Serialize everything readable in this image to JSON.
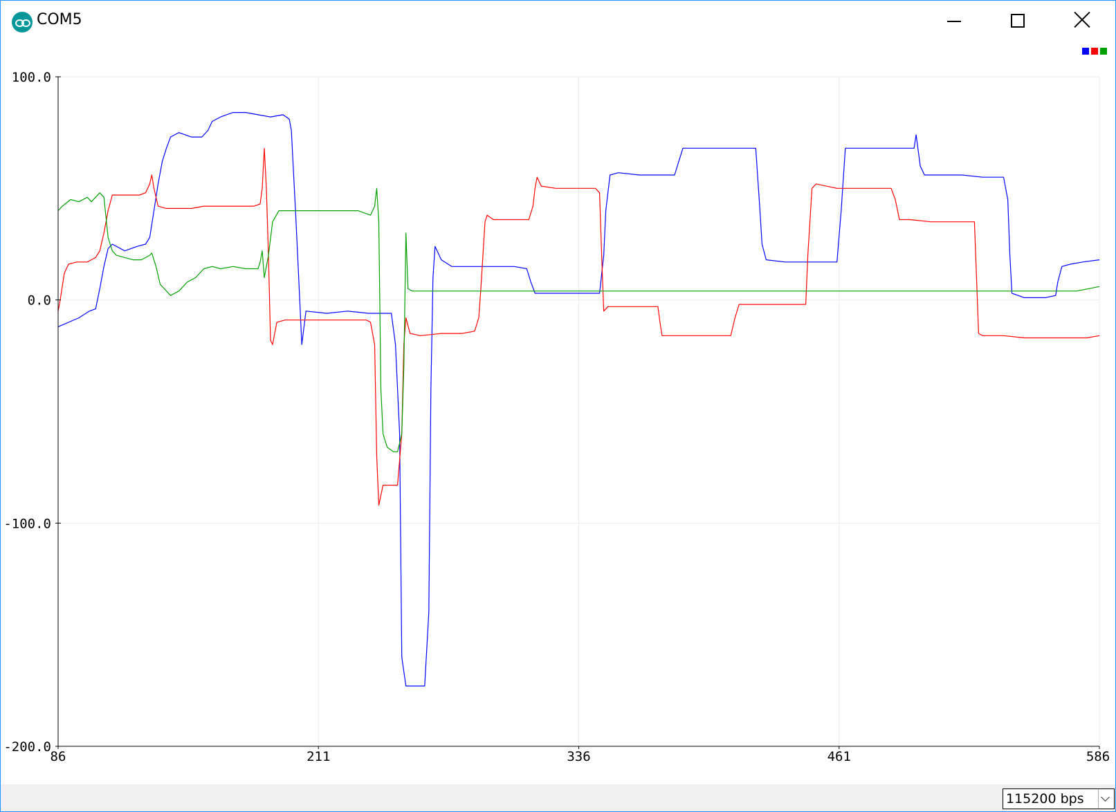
{
  "window": {
    "title": "COM5",
    "app_icon": "arduino-logo-icon",
    "controls": [
      "minimize-icon",
      "maximize-icon",
      "close-icon"
    ]
  },
  "baud": {
    "selected": "115200 bps"
  },
  "colors": {
    "series_1": "#0000ff",
    "series_2": "#ff0000",
    "series_3": "#00a000",
    "grid": "#ececec",
    "axis": "#000000",
    "bottom_bar": "#f0f0f0"
  },
  "chart_data": {
    "type": "line",
    "title": "",
    "xlabel": "",
    "ylabel": "",
    "xlim": [
      86,
      586
    ],
    "ylim": [
      -200,
      100
    ],
    "x_ticks": [
      "86",
      "211",
      "336",
      "461",
      "586"
    ],
    "y_ticks": [
      "100.0",
      "0.0",
      "-100.0",
      "-200.0"
    ],
    "grid": true,
    "legend_placement": "top-right",
    "series": [
      {
        "color": "#0000ff",
        "points": [
          [
            86,
            -12
          ],
          [
            96,
            -8
          ],
          [
            101,
            -5
          ],
          [
            104,
            -4
          ],
          [
            106,
            5
          ],
          [
            108,
            15
          ],
          [
            110,
            23
          ],
          [
            112,
            25
          ],
          [
            118,
            22
          ],
          [
            124,
            24
          ],
          [
            128,
            25
          ],
          [
            130,
            28
          ],
          [
            132,
            40
          ],
          [
            134,
            52
          ],
          [
            136,
            62
          ],
          [
            138,
            68
          ],
          [
            140,
            73
          ],
          [
            144,
            75
          ],
          [
            150,
            73
          ],
          [
            155,
            73
          ],
          [
            158,
            76
          ],
          [
            160,
            80
          ],
          [
            164,
            82
          ],
          [
            170,
            84
          ],
          [
            176,
            84
          ],
          [
            182,
            83
          ],
          [
            188,
            82
          ],
          [
            194,
            83
          ],
          [
            197,
            81
          ],
          [
            198,
            76
          ],
          [
            200,
            40
          ],
          [
            201,
            20
          ],
          [
            202,
            0
          ],
          [
            203,
            -20
          ],
          [
            205,
            -5
          ],
          [
            215,
            -6
          ],
          [
            225,
            -5
          ],
          [
            235,
            -6
          ],
          [
            246,
            -6
          ],
          [
            248,
            -20
          ],
          [
            250,
            -60
          ],
          [
            251,
            -160
          ],
          [
            253,
            -173
          ],
          [
            258,
            -173
          ],
          [
            262,
            -173
          ],
          [
            264,
            -140
          ],
          [
            265,
            -40
          ],
          [
            266,
            10
          ],
          [
            267,
            24
          ],
          [
            270,
            18
          ],
          [
            275,
            15
          ],
          [
            285,
            15
          ],
          [
            295,
            15
          ],
          [
            305,
            15
          ],
          [
            311,
            14
          ],
          [
            313,
            8
          ],
          [
            315,
            3
          ],
          [
            320,
            3
          ],
          [
            330,
            3
          ],
          [
            340,
            3
          ],
          [
            346,
            3
          ],
          [
            348,
            20
          ],
          [
            349,
            40
          ],
          [
            351,
            56
          ],
          [
            355,
            57
          ],
          [
            365,
            56
          ],
          [
            375,
            56
          ],
          [
            382,
            56
          ],
          [
            384,
            62
          ],
          [
            386,
            68
          ],
          [
            390,
            68
          ],
          [
            400,
            68
          ],
          [
            410,
            68
          ],
          [
            421,
            68
          ],
          [
            423,
            40
          ],
          [
            424,
            25
          ],
          [
            426,
            18
          ],
          [
            435,
            17
          ],
          [
            445,
            17
          ],
          [
            455,
            17
          ],
          [
            460,
            17
          ],
          [
            462,
            40
          ],
          [
            464,
            68
          ],
          [
            470,
            68
          ],
          [
            480,
            68
          ],
          [
            490,
            68
          ],
          [
            497,
            68
          ],
          [
            498,
            74
          ],
          [
            500,
            60
          ],
          [
            502,
            56
          ],
          [
            510,
            56
          ],
          [
            520,
            56
          ],
          [
            530,
            55
          ],
          [
            540,
            55
          ],
          [
            542,
            45
          ],
          [
            543,
            20
          ],
          [
            544,
            3
          ],
          [
            550,
            1
          ],
          [
            560,
            1
          ],
          [
            565,
            2
          ],
          [
            566,
            8
          ],
          [
            568,
            15
          ],
          [
            572,
            16
          ],
          [
            578,
            17
          ],
          [
            586,
            18
          ]
        ]
      },
      {
        "color": "#ff0000",
        "points": [
          [
            86,
            -5
          ],
          [
            87,
            0
          ],
          [
            89,
            12
          ],
          [
            91,
            16
          ],
          [
            95,
            17
          ],
          [
            100,
            17
          ],
          [
            104,
            19
          ],
          [
            106,
            22
          ],
          [
            108,
            30
          ],
          [
            110,
            40
          ],
          [
            112,
            47
          ],
          [
            116,
            47
          ],
          [
            120,
            47
          ],
          [
            125,
            47
          ],
          [
            128,
            48
          ],
          [
            130,
            52
          ],
          [
            131,
            56
          ],
          [
            132,
            50
          ],
          [
            134,
            42
          ],
          [
            138,
            41
          ],
          [
            145,
            41
          ],
          [
            150,
            41
          ],
          [
            156,
            42
          ],
          [
            162,
            42
          ],
          [
            170,
            42
          ],
          [
            176,
            42
          ],
          [
            180,
            42
          ],
          [
            183,
            43
          ],
          [
            184,
            50
          ],
          [
            185,
            68
          ],
          [
            186,
            50
          ],
          [
            187,
            20
          ],
          [
            188,
            -18
          ],
          [
            189,
            -20
          ],
          [
            191,
            -10
          ],
          [
            195,
            -9
          ],
          [
            205,
            -9
          ],
          [
            215,
            -9
          ],
          [
            225,
            -9
          ],
          [
            234,
            -9
          ],
          [
            236,
            -10
          ],
          [
            238,
            -20
          ],
          [
            239,
            -70
          ],
          [
            240,
            -92
          ],
          [
            242,
            -83
          ],
          [
            245,
            -83
          ],
          [
            249,
            -83
          ],
          [
            251,
            -60
          ],
          [
            252,
            -20
          ],
          [
            253,
            -8
          ],
          [
            255,
            -15
          ],
          [
            260,
            -16
          ],
          [
            270,
            -15
          ],
          [
            280,
            -15
          ],
          [
            286,
            -14
          ],
          [
            288,
            -8
          ],
          [
            289,
            5
          ],
          [
            290,
            20
          ],
          [
            291,
            35
          ],
          [
            292,
            38
          ],
          [
            295,
            36
          ],
          [
            305,
            36
          ],
          [
            312,
            36
          ],
          [
            314,
            42
          ],
          [
            315,
            50
          ],
          [
            316,
            55
          ],
          [
            318,
            51
          ],
          [
            325,
            50
          ],
          [
            335,
            50
          ],
          [
            344,
            50
          ],
          [
            346,
            48
          ],
          [
            347,
            20
          ],
          [
            348,
            -5
          ],
          [
            350,
            -3
          ],
          [
            360,
            -3
          ],
          [
            370,
            -3
          ],
          [
            374,
            -3
          ],
          [
            375,
            -10
          ],
          [
            376,
            -16
          ],
          [
            380,
            -16
          ],
          [
            390,
            -16
          ],
          [
            400,
            -16
          ],
          [
            409,
            -16
          ],
          [
            411,
            -8
          ],
          [
            413,
            -2
          ],
          [
            420,
            -2
          ],
          [
            430,
            -2
          ],
          [
            440,
            -2
          ],
          [
            445,
            -2
          ],
          [
            446,
            20
          ],
          [
            448,
            50
          ],
          [
            450,
            52
          ],
          [
            460,
            50
          ],
          [
            470,
            50
          ],
          [
            480,
            50
          ],
          [
            486,
            50
          ],
          [
            488,
            45
          ],
          [
            490,
            36
          ],
          [
            495,
            36
          ],
          [
            505,
            35
          ],
          [
            515,
            35
          ],
          [
            526,
            35
          ],
          [
            527,
            10
          ],
          [
            528,
            -15
          ],
          [
            530,
            -16
          ],
          [
            540,
            -16
          ],
          [
            550,
            -17
          ],
          [
            560,
            -17
          ],
          [
            570,
            -17
          ],
          [
            580,
            -17
          ],
          [
            586,
            -16
          ]
        ]
      },
      {
        "color": "#00a000",
        "points": [
          [
            86,
            40
          ],
          [
            88,
            42
          ],
          [
            92,
            45
          ],
          [
            96,
            44
          ],
          [
            100,
            46
          ],
          [
            102,
            44
          ],
          [
            104,
            46
          ],
          [
            106,
            48
          ],
          [
            108,
            46
          ],
          [
            110,
            28
          ],
          [
            112,
            22
          ],
          [
            114,
            20
          ],
          [
            118,
            19
          ],
          [
            122,
            18
          ],
          [
            126,
            18
          ],
          [
            130,
            20
          ],
          [
            131,
            21
          ],
          [
            133,
            15
          ],
          [
            135,
            7
          ],
          [
            137,
            5
          ],
          [
            140,
            2
          ],
          [
            144,
            4
          ],
          [
            148,
            8
          ],
          [
            152,
            10
          ],
          [
            156,
            14
          ],
          [
            160,
            15
          ],
          [
            164,
            14
          ],
          [
            170,
            15
          ],
          [
            176,
            14
          ],
          [
            182,
            14
          ],
          [
            183,
            17
          ],
          [
            184,
            22
          ],
          [
            185,
            10
          ],
          [
            187,
            20
          ],
          [
            189,
            35
          ],
          [
            192,
            40
          ],
          [
            200,
            40
          ],
          [
            210,
            40
          ],
          [
            220,
            40
          ],
          [
            230,
            40
          ],
          [
            236,
            38
          ],
          [
            238,
            42
          ],
          [
            239,
            50
          ],
          [
            240,
            35
          ],
          [
            241,
            -40
          ],
          [
            242,
            -60
          ],
          [
            244,
            -66
          ],
          [
            247,
            -68
          ],
          [
            249,
            -68
          ],
          [
            251,
            -60
          ],
          [
            252,
            -30
          ],
          [
            253,
            30
          ],
          [
            254,
            5
          ],
          [
            256,
            4
          ],
          [
            265,
            4
          ],
          [
            275,
            4
          ],
          [
            285,
            4
          ],
          [
            295,
            4
          ],
          [
            305,
            4
          ],
          [
            315,
            4
          ],
          [
            325,
            4
          ],
          [
            335,
            4
          ],
          [
            345,
            4
          ],
          [
            355,
            4
          ],
          [
            365,
            4
          ],
          [
            375,
            4
          ],
          [
            385,
            4
          ],
          [
            395,
            4
          ],
          [
            405,
            4
          ],
          [
            415,
            4
          ],
          [
            425,
            4
          ],
          [
            435,
            4
          ],
          [
            445,
            4
          ],
          [
            455,
            4
          ],
          [
            465,
            4
          ],
          [
            475,
            4
          ],
          [
            485,
            4
          ],
          [
            495,
            4
          ],
          [
            505,
            4
          ],
          [
            515,
            4
          ],
          [
            525,
            4
          ],
          [
            535,
            4
          ],
          [
            545,
            4
          ],
          [
            555,
            4
          ],
          [
            565,
            4
          ],
          [
            575,
            4
          ],
          [
            586,
            6
          ]
        ]
      }
    ]
  }
}
